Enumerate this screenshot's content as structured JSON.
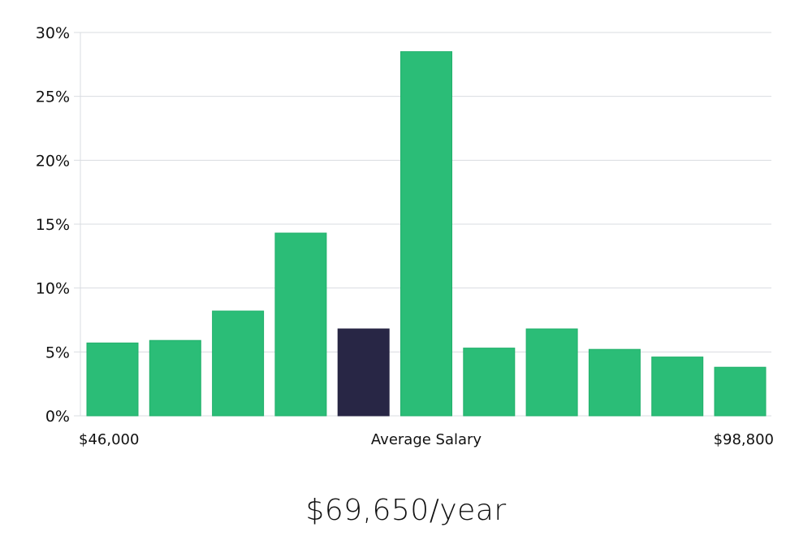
{
  "chart_data": {
    "type": "bar",
    "title": "",
    "xlabel": "Average Salary",
    "ylabel": "",
    "ylim": [
      0,
      30
    ],
    "yticks": [
      0,
      5,
      10,
      15,
      20,
      25,
      30
    ],
    "ytick_suffix": "%",
    "grid": "horizontal",
    "x_range_labels": {
      "min": "$46,000",
      "center": "Average Salary",
      "max": "$98,800"
    },
    "values": [
      5.7,
      5.9,
      8.2,
      14.3,
      6.8,
      28.5,
      5.3,
      6.8,
      5.2,
      4.6,
      3.8
    ],
    "highlight_index": 4,
    "colors": {
      "bar": "#2bbd77",
      "bar_stroke": "#22b06b",
      "highlight": "#282645",
      "grid": "#d9dce1"
    }
  },
  "summary": {
    "salary": "$69,650/year"
  }
}
